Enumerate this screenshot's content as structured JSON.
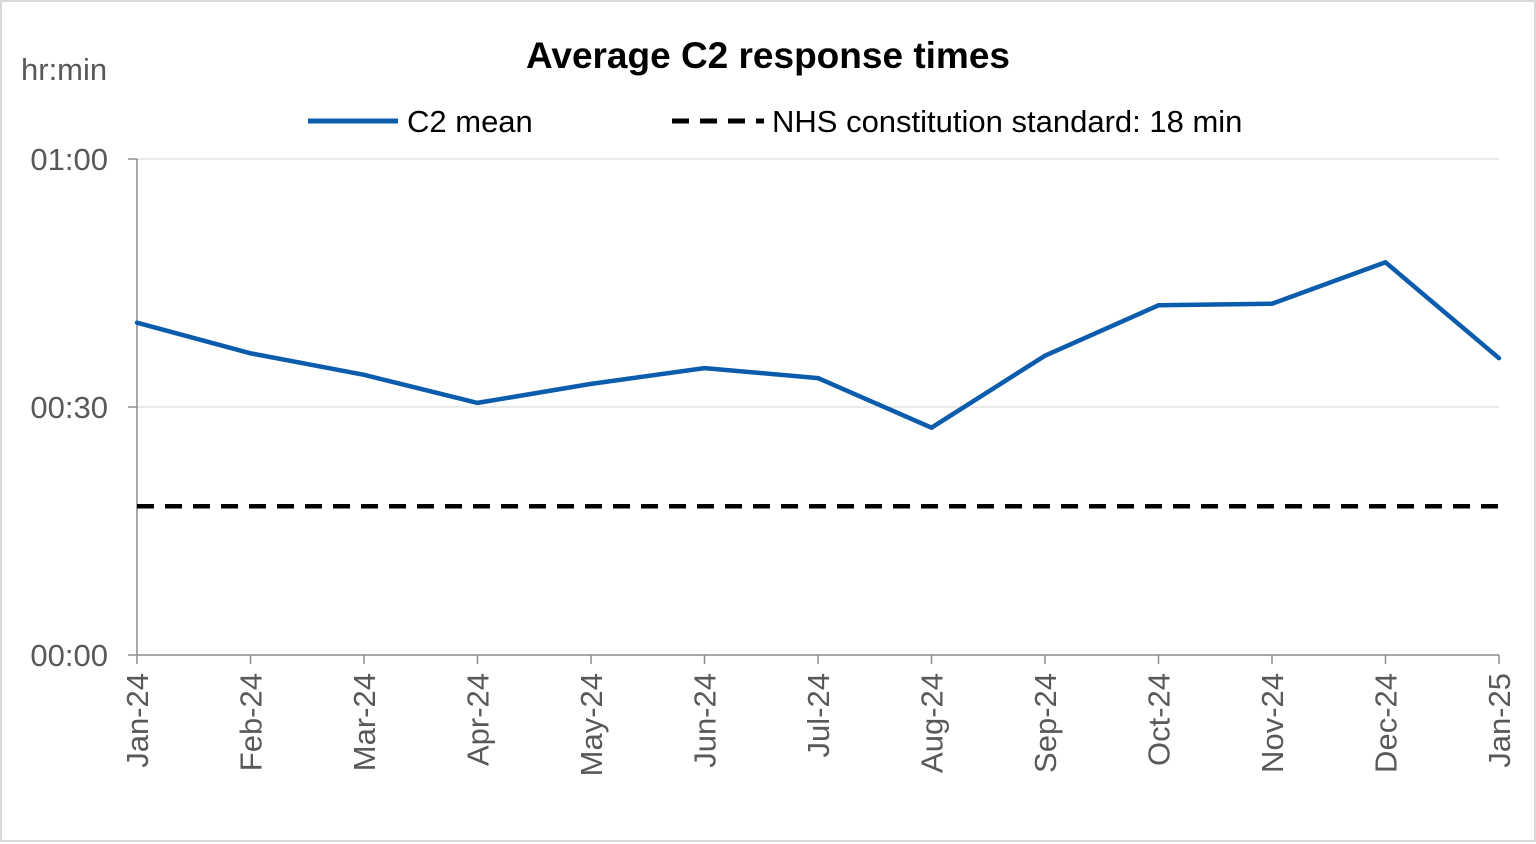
{
  "chart_data": {
    "type": "line",
    "title": "Average C2 response times",
    "ylabel": "hr:min",
    "xlabel": "",
    "categories": [
      "Jan-24",
      "Feb-24",
      "Mar-24",
      "Apr-24",
      "May-24",
      "Jun-24",
      "Jul-24",
      "Aug-24",
      "Sep-24",
      "Oct-24",
      "Nov-24",
      "Dec-24",
      "Jan-25"
    ],
    "y_unit": "minutes",
    "ylim": [
      0,
      60
    ],
    "yticks": [
      {
        "value": 0,
        "label": "00:00"
      },
      {
        "value": 30,
        "label": "00:30"
      },
      {
        "value": 60,
        "label": "01:00"
      }
    ],
    "series": [
      {
        "name": "C2 mean",
        "color": "#0b5cad",
        "style": "solid",
        "values": [
          40.2,
          36.5,
          33.9,
          30.5,
          32.8,
          34.7,
          33.5,
          27.5,
          36.2,
          42.3,
          42.5,
          47.5,
          35.9
        ]
      },
      {
        "name": "NHS constitution standard: 18 min",
        "color": "#000000",
        "style": "dashed",
        "values": [
          18,
          18,
          18,
          18,
          18,
          18,
          18,
          18,
          18,
          18,
          18,
          18,
          18
        ]
      }
    ],
    "grid": "horizontal",
    "legend_position": "top"
  }
}
